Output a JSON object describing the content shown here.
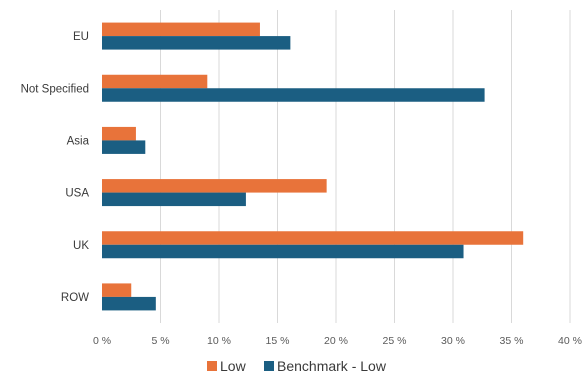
{
  "chart_data": {
    "type": "bar",
    "orientation": "horizontal",
    "categories": [
      "EU",
      "Not Specified",
      "Asia",
      "USA",
      "UK",
      "ROW"
    ],
    "series": [
      {
        "name": "Low",
        "values": [
          13.5,
          9.0,
          2.9,
          19.2,
          36.0,
          2.5
        ],
        "color": "#E8733A"
      },
      {
        "name": "Benchmark - Low",
        "values": [
          16.1,
          32.7,
          3.7,
          12.3,
          30.9,
          4.6
        ],
        "color": "#1B5E82"
      }
    ],
    "xlim": [
      0,
      40
    ],
    "x_ticks": [
      "0 %",
      "5 %",
      "10 %",
      "15 %",
      "20 %",
      "25 %",
      "30 %",
      "35 %",
      "40 %"
    ],
    "grid": "vertical",
    "legend_position": "bottom"
  }
}
